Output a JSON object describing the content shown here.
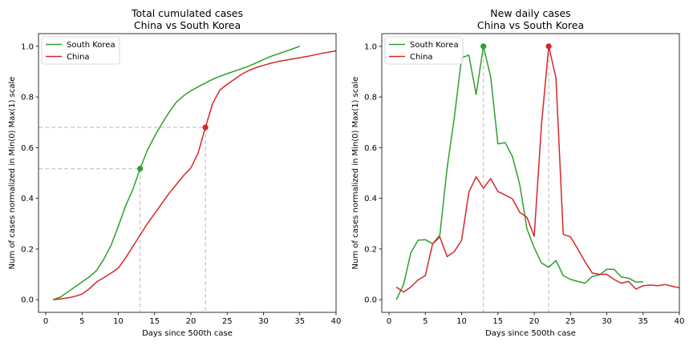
{
  "chart_data": [
    {
      "type": "line",
      "title": "Total cumulated cases",
      "subtitle": "China vs South Korea",
      "xlabel": "Days since 500th case",
      "ylabel": "Num of cases normalized in Min(0) Max(1) scale",
      "xlim": [
        -1,
        40
      ],
      "ylim": [
        -0.05,
        1.05
      ],
      "xticks": [
        0,
        5,
        10,
        15,
        20,
        25,
        30,
        35,
        40
      ],
      "yticks": [
        0.0,
        0.2,
        0.4,
        0.6,
        0.8,
        1.0
      ],
      "ytick_labels": [
        "0.0",
        "0.2",
        "0.4",
        "0.6",
        "0.8",
        "1.0"
      ],
      "grid": false,
      "legend": "top-left",
      "series": [
        {
          "name": "South Korea",
          "color": "#2ca02c",
          "x": [
            1,
            2,
            3,
            4,
            5,
            6,
            7,
            8,
            9,
            10,
            11,
            12,
            13,
            14,
            15,
            16,
            17,
            18,
            19,
            20,
            21,
            22,
            23,
            24,
            25,
            26,
            27,
            28,
            29,
            30,
            31,
            32,
            33,
            34,
            35
          ],
          "y": [
            0,
            0.01,
            0.03,
            0.05,
            0.07,
            0.09,
            0.115,
            0.16,
            0.215,
            0.29,
            0.37,
            0.435,
            0.517,
            0.59,
            0.645,
            0.695,
            0.74,
            0.78,
            0.805,
            0.825,
            0.84,
            0.855,
            0.87,
            0.882,
            0.892,
            0.902,
            0.912,
            0.922,
            0.935,
            0.948,
            0.96,
            0.97,
            0.98,
            0.99,
            1.0
          ]
        },
        {
          "name": "China",
          "color": "#d62728",
          "x": [
            1,
            2,
            3,
            4,
            5,
            6,
            7,
            8,
            9,
            10,
            11,
            12,
            13,
            14,
            15,
            16,
            17,
            18,
            19,
            20,
            21,
            22,
            23,
            24,
            25,
            26,
            27,
            28,
            29,
            30,
            31,
            32,
            33,
            34,
            35,
            36,
            37,
            38,
            39,
            40
          ],
          "y": [
            0,
            0.003,
            0.007,
            0.013,
            0.022,
            0.043,
            0.07,
            0.087,
            0.105,
            0.125,
            0.165,
            0.21,
            0.255,
            0.3,
            0.34,
            0.38,
            0.42,
            0.455,
            0.49,
            0.52,
            0.58,
            0.68,
            0.775,
            0.828,
            0.85,
            0.87,
            0.89,
            0.905,
            0.916,
            0.925,
            0.933,
            0.94,
            0.945,
            0.95,
            0.955,
            0.96,
            0.966,
            0.972,
            0.977,
            0.982
          ]
        }
      ],
      "markers": [
        {
          "series": "South Korea",
          "x": 13,
          "y": 0.517
        },
        {
          "series": "China",
          "x": 22,
          "y": 0.68
        }
      ],
      "guide_color": "#c8c8c8"
    },
    {
      "type": "line",
      "title": "New daily cases",
      "subtitle": "China vs South Korea",
      "xlabel": "Days since 500th case",
      "ylabel": "Num of cases normalized in Min(0) Max(1) scale",
      "xlim": [
        -1,
        40
      ],
      "ylim": [
        -0.05,
        1.05
      ],
      "xticks": [
        0,
        5,
        10,
        15,
        20,
        25,
        30,
        35,
        40
      ],
      "yticks": [
        0.0,
        0.2,
        0.4,
        0.6,
        0.8,
        1.0
      ],
      "ytick_labels": [
        "0.0",
        "0.2",
        "0.4",
        "0.6",
        "0.8",
        "1.0"
      ],
      "grid": false,
      "legend": "top-left",
      "series": [
        {
          "name": "South Korea",
          "color": "#2ca02c",
          "x": [
            1,
            2,
            3,
            4,
            5,
            6,
            7,
            8,
            9,
            10,
            11,
            12,
            13,
            14,
            15,
            16,
            17,
            18,
            19,
            20,
            21,
            22,
            23,
            24,
            25,
            26,
            27,
            28,
            29,
            30,
            31,
            32,
            33,
            34,
            35
          ],
          "y": [
            0,
            0.06,
            0.185,
            0.235,
            0.237,
            0.22,
            0.255,
            0.52,
            0.72,
            0.955,
            0.965,
            0.81,
            1.0,
            0.88,
            0.615,
            0.62,
            0.565,
            0.455,
            0.28,
            0.205,
            0.145,
            0.128,
            0.155,
            0.095,
            0.08,
            0.072,
            0.065,
            0.092,
            0.098,
            0.12,
            0.12,
            0.09,
            0.085,
            0.07,
            0.07
          ]
        },
        {
          "name": "China",
          "color": "#d62728",
          "x": [
            1,
            2,
            3,
            4,
            5,
            6,
            7,
            8,
            9,
            10,
            11,
            12,
            13,
            14,
            15,
            16,
            17,
            18,
            19,
            20,
            21,
            22,
            23,
            24,
            25,
            26,
            27,
            28,
            29,
            30,
            31,
            32,
            33,
            34,
            35,
            36,
            37,
            38,
            39,
            40
          ],
          "y": [
            0.05,
            0.03,
            0.05,
            0.078,
            0.095,
            0.22,
            0.248,
            0.17,
            0.19,
            0.235,
            0.425,
            0.485,
            0.44,
            0.478,
            0.427,
            0.413,
            0.398,
            0.345,
            0.325,
            0.25,
            0.69,
            1.0,
            0.875,
            0.258,
            0.248,
            0.2,
            0.15,
            0.105,
            0.1,
            0.1,
            0.08,
            0.065,
            0.072,
            0.042,
            0.055,
            0.058,
            0.055,
            0.06,
            0.053,
            0.047
          ]
        }
      ],
      "markers": [
        {
          "series": "South Korea",
          "x": 13,
          "y": 1.0
        },
        {
          "series": "China",
          "x": 22,
          "y": 1.0
        }
      ],
      "guide_color": "#c8c8c8"
    }
  ]
}
